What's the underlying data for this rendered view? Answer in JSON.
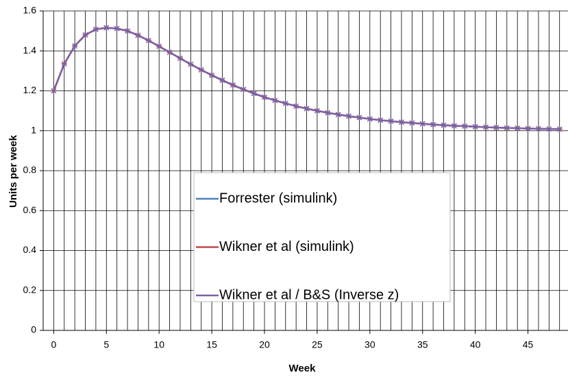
{
  "chart_data": {
    "type": "line",
    "x_label": "Week",
    "y_label": "Units per week",
    "x": [
      0,
      1,
      2,
      3,
      4,
      5,
      6,
      7,
      8,
      9,
      10,
      11,
      12,
      13,
      14,
      15,
      16,
      17,
      18,
      19,
      20,
      21,
      22,
      23,
      24,
      25,
      26,
      27,
      28,
      29,
      30,
      31,
      32,
      33,
      34,
      35,
      36,
      37,
      38,
      39,
      40,
      41,
      42,
      43,
      44,
      45,
      46,
      47,
      48
    ],
    "series": [
      {
        "name": "Forrester (simulink)",
        "color": "#4a7ebb",
        "marker": "plus",
        "values": [
          1.2,
          1.335,
          1.425,
          1.48,
          1.508,
          1.516,
          1.512,
          1.5,
          1.478,
          1.452,
          1.423,
          1.393,
          1.363,
          1.333,
          1.305,
          1.278,
          1.253,
          1.229,
          1.207,
          1.187,
          1.168,
          1.152,
          1.137,
          1.123,
          1.111,
          1.1,
          1.09,
          1.081,
          1.073,
          1.066,
          1.059,
          1.053,
          1.048,
          1.043,
          1.039,
          1.035,
          1.031,
          1.028,
          1.025,
          1.023,
          1.02,
          1.018,
          1.016,
          1.014,
          1.013,
          1.011,
          1.01,
          1.009,
          1.008
        ]
      },
      {
        "name": "Wikner et al  (simulink)",
        "color": "#be4b48",
        "marker": "plus",
        "values": [
          1.2,
          1.335,
          1.425,
          1.48,
          1.508,
          1.516,
          1.512,
          1.5,
          1.478,
          1.452,
          1.423,
          1.393,
          1.363,
          1.333,
          1.305,
          1.278,
          1.253,
          1.229,
          1.207,
          1.187,
          1.168,
          1.152,
          1.137,
          1.123,
          1.111,
          1.1,
          1.09,
          1.081,
          1.073,
          1.066,
          1.059,
          1.053,
          1.048,
          1.043,
          1.039,
          1.035,
          1.031,
          1.028,
          1.025,
          1.023,
          1.02,
          1.018,
          1.016,
          1.014,
          1.013,
          1.011,
          1.01,
          1.009,
          1.008
        ]
      },
      {
        "name": "Wikner et al / B&S (Inverse z)",
        "color": "#7d60a0",
        "marker": "star",
        "values": [
          1.2,
          1.335,
          1.425,
          1.48,
          1.508,
          1.516,
          1.512,
          1.5,
          1.478,
          1.452,
          1.423,
          1.393,
          1.363,
          1.333,
          1.305,
          1.278,
          1.253,
          1.229,
          1.207,
          1.187,
          1.168,
          1.152,
          1.137,
          1.123,
          1.111,
          1.1,
          1.09,
          1.081,
          1.073,
          1.066,
          1.059,
          1.053,
          1.048,
          1.043,
          1.039,
          1.035,
          1.031,
          1.028,
          1.025,
          1.023,
          1.02,
          1.018,
          1.016,
          1.014,
          1.013,
          1.011,
          1.01,
          1.009,
          1.008
        ]
      }
    ],
    "xlim": [
      -1,
      48.8
    ],
    "xticks": [
      0,
      5,
      10,
      15,
      20,
      25,
      30,
      35,
      40,
      45
    ],
    "ylim": [
      0,
      1.6
    ],
    "yticks": [
      0,
      0.2,
      0.4,
      0.6,
      0.8,
      1,
      1.2,
      1.4,
      1.6
    ],
    "grid": true,
    "legend": "center"
  }
}
